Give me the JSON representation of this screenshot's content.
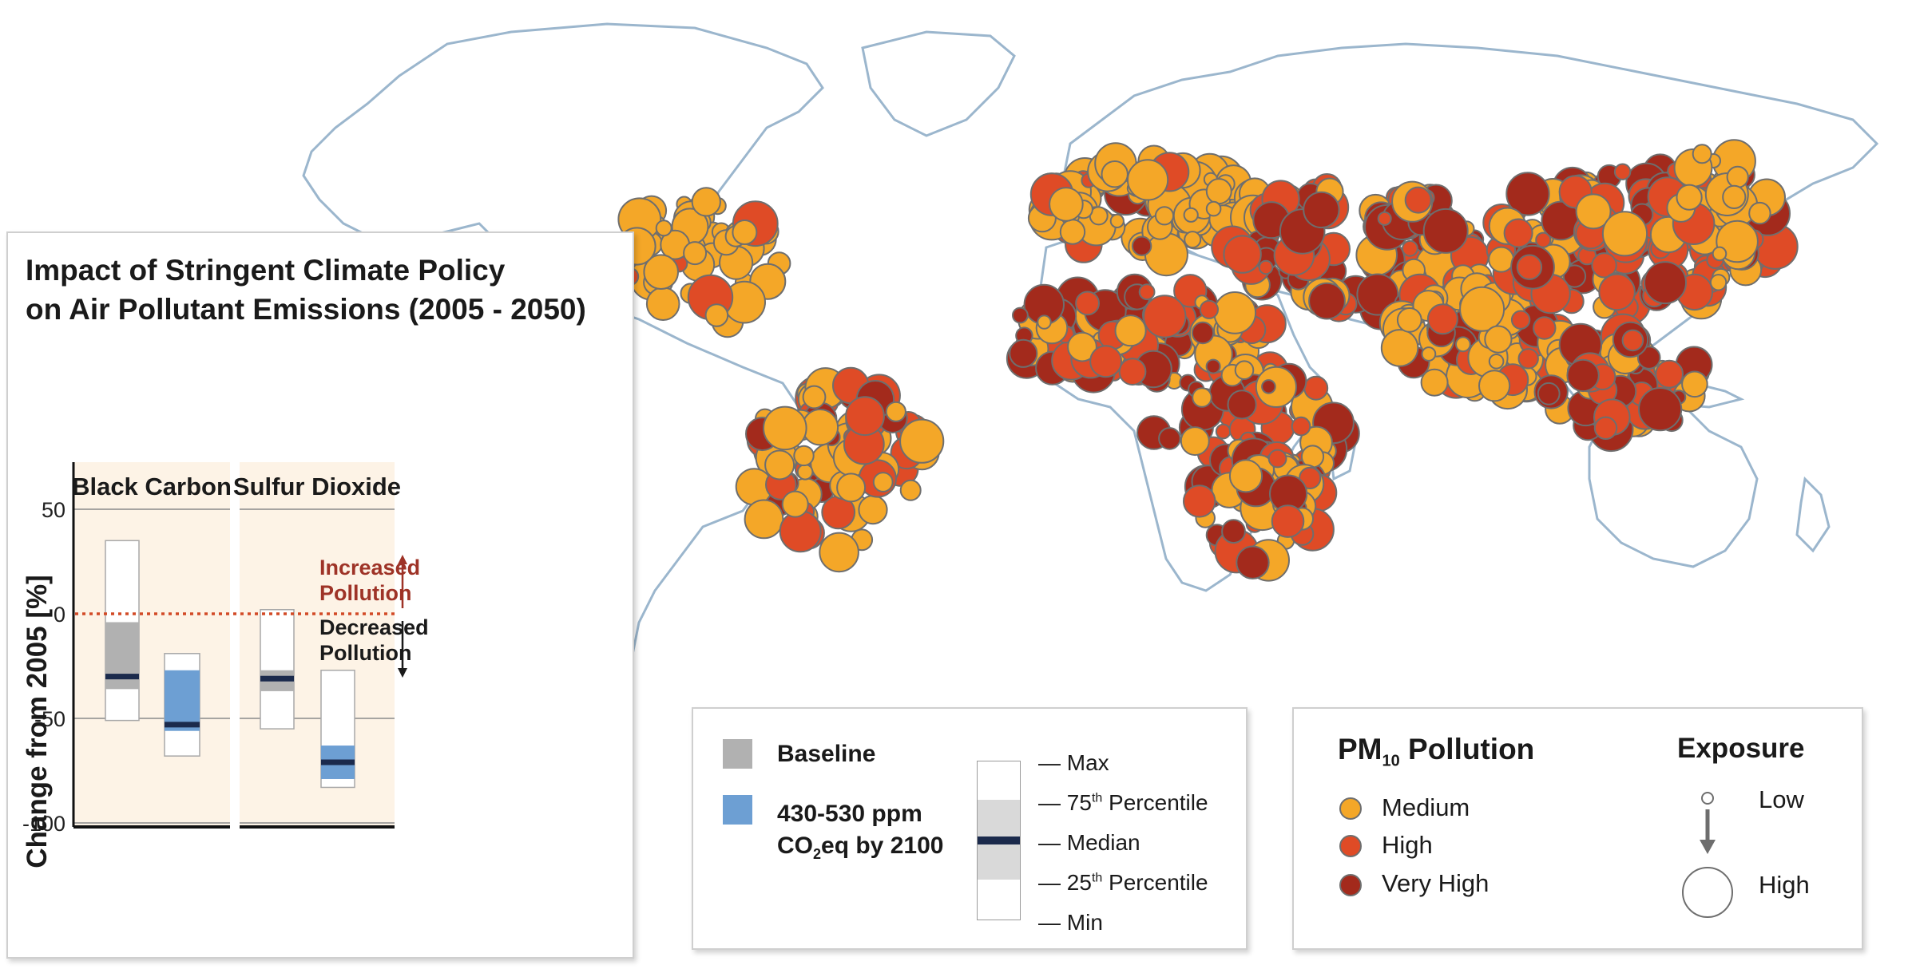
{
  "chart_data": {
    "type": "box",
    "title": "Impact of Stringent Climate Policy on Air Pollutant Emissions (2005 - 2050)",
    "title_lines": [
      "Impact of Stringent Climate Policy",
      "on Air Pollutant Emissions (2005 - 2050)"
    ],
    "ylabel": "Change from 2005 [%]",
    "ylim": [
      -100,
      70
    ],
    "yticks": [
      50,
      0,
      -50,
      -100
    ],
    "ytick_labels": [
      "50",
      "0",
      "-50",
      "-100"
    ],
    "reference_line": 0,
    "panels": [
      {
        "name": "Black Carbon",
        "boxes": [
          {
            "scenario": "Baseline",
            "min": -51,
            "p25": -36,
            "median": -30,
            "p75": -4,
            "max": 35
          },
          {
            "scenario": "430-530 ppm CO2eq by 2100",
            "min": -68,
            "p25": -56,
            "median": -53,
            "p75": -27,
            "max": -19
          }
        ]
      },
      {
        "name": "Sulfur Dioxide",
        "boxes": [
          {
            "scenario": "Baseline",
            "min": -55,
            "p25": -37,
            "median": -31,
            "p75": -27,
            "max": 2
          },
          {
            "scenario": "430-530 ppm CO2eq by 2100",
            "min": -83,
            "p25": -79,
            "median": -71,
            "p75": -63,
            "max": -27
          }
        ]
      }
    ],
    "annotations": {
      "increased": [
        "Increased",
        "Pollution"
      ],
      "decreased": [
        "Decreased",
        "Pollution"
      ]
    }
  },
  "colors": {
    "baseline": "#b1b1b1",
    "policy": "#6d9fd3",
    "median": "#1b2a4c",
    "panel_bg": "#fdf3e6",
    "zero_line": "#d24a26",
    "increased_text": "#9e3327",
    "land": "#ffffff",
    "coast": "#9bb6cd",
    "medium": "#f4a728",
    "high": "#df4b26",
    "very_high": "#a32a1c"
  },
  "legend_scenarios": {
    "baseline_label": "Baseline",
    "policy_line1": "430-530 ppm",
    "policy_line2_pre": "CO",
    "policy_line2_sub": "2",
    "policy_line2_post": "eq by 2100"
  },
  "legend_box": {
    "max": "— Max",
    "p75_pre": "— 75",
    "p75_sup": "th",
    "p75_post": " Percentile",
    "median": "— Median",
    "p25_pre": "— 25",
    "p25_sup": "th",
    "p25_post": " Percentile",
    "min": "— Min"
  },
  "legend_pm": {
    "title_pre": "PM",
    "title_sub": "10",
    "title_post": " Pollution",
    "levels": [
      "Medium",
      "High",
      "Very High"
    ],
    "exposure_title": "Exposure",
    "exposure_low": "Low",
    "exposure_high": "High"
  }
}
